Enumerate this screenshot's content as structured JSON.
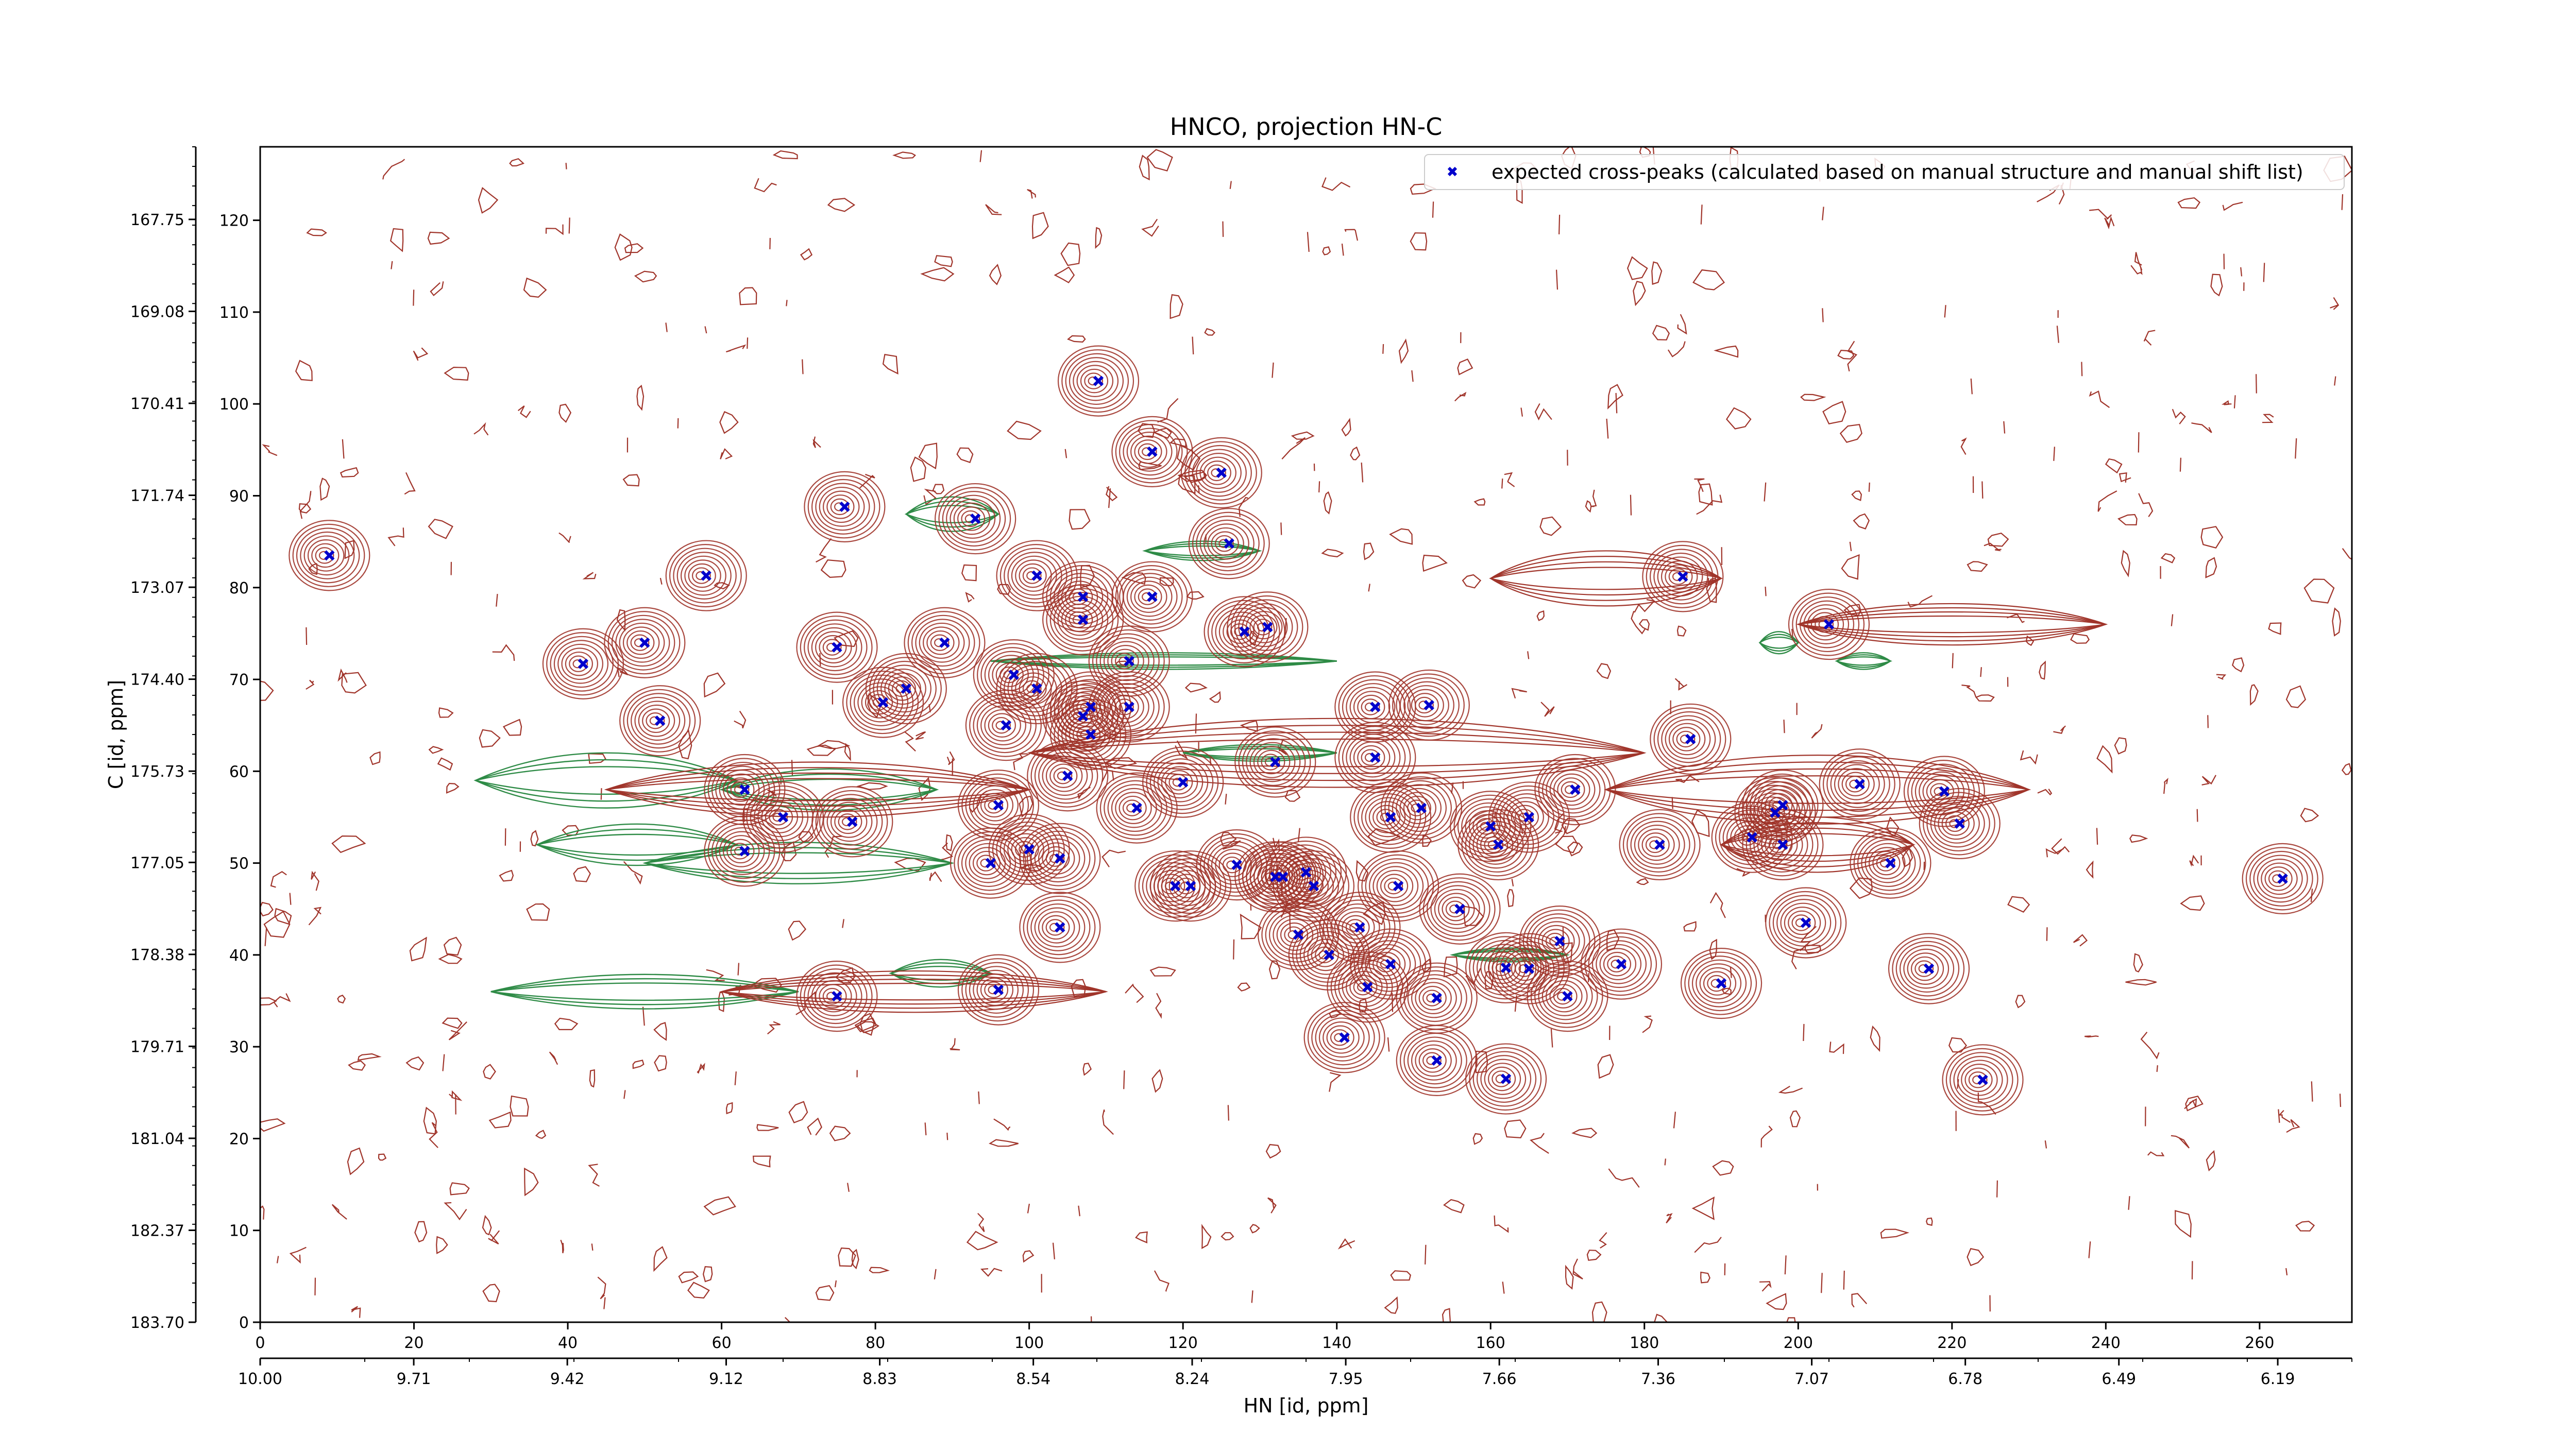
{
  "chart_data": {
    "type": "scatter",
    "title": "HNCO, projection HN-C",
    "xlabel": "HN [id, ppm]",
    "ylabel": "C [id, ppm]",
    "x_index": {
      "range": [
        0,
        272
      ],
      "ticks": [
        "0",
        "20",
        "40",
        "60",
        "80",
        "100",
        "120",
        "140",
        "160",
        "180",
        "200",
        "220",
        "240",
        "260"
      ]
    },
    "x_ppm": {
      "range": [
        10.0,
        6.05
      ],
      "ticks": [
        "10.00",
        "9.71",
        "9.42",
        "9.12",
        "8.83",
        "8.54",
        "8.24",
        "7.95",
        "7.66",
        "7.36",
        "7.07",
        "6.78",
        "6.49",
        "6.19"
      ]
    },
    "y_index": {
      "range": [
        0,
        128
      ],
      "ticks": [
        "0",
        "10",
        "20",
        "30",
        "40",
        "50",
        "60",
        "70",
        "80",
        "90",
        "100",
        "110",
        "120"
      ]
    },
    "y_ppm": {
      "range": [
        183.7,
        166.7
      ],
      "ticks": [
        "183.70",
        "182.37",
        "181.04",
        "179.71",
        "178.38",
        "177.05",
        "175.73",
        "174.40",
        "173.07",
        "171.74",
        "170.41",
        "169.08",
        "167.75"
      ]
    },
    "grid": false,
    "legend": {
      "placement": "top-right",
      "entries": [
        {
          "label": "expected cross-peaks (calculated based on manual structure and manual shift list)",
          "marker": "x",
          "color": "#0000cc"
        }
      ]
    },
    "colors": {
      "positive_contours": "#a0342a",
      "negative_contours": "#2e8b46",
      "peaks": "#0000cc"
    },
    "series": [
      {
        "kind": "peaks",
        "points": [
          [
            9,
            83.5
          ],
          [
            42,
            71.7
          ],
          [
            50,
            74
          ],
          [
            52,
            65.5
          ],
          [
            58,
            81.3
          ],
          [
            63,
            58
          ],
          [
            63,
            51.3
          ],
          [
            68,
            55
          ],
          [
            75,
            35.5
          ],
          [
            75,
            73.5
          ],
          [
            76,
            88.8
          ],
          [
            77,
            54.5
          ],
          [
            81,
            67.5
          ],
          [
            84,
            69
          ],
          [
            89,
            74
          ],
          [
            93,
            87.5
          ],
          [
            95,
            50
          ],
          [
            96,
            36.2
          ],
          [
            96,
            56.3
          ],
          [
            97,
            65
          ],
          [
            98,
            70.5
          ],
          [
            100,
            51.5
          ],
          [
            101,
            69
          ],
          [
            101,
            81.3
          ],
          [
            104,
            50.5
          ],
          [
            104,
            43
          ],
          [
            105,
            59.5
          ],
          [
            107,
            79
          ],
          [
            107,
            76.5
          ],
          [
            107,
            66
          ],
          [
            108,
            64
          ],
          [
            108,
            67
          ],
          [
            109,
            102.5
          ],
          [
            113,
            67
          ],
          [
            113,
            72
          ],
          [
            114,
            56
          ],
          [
            116,
            94.8
          ],
          [
            116,
            79
          ],
          [
            119,
            47.5
          ],
          [
            120,
            58.8
          ],
          [
            121,
            47.5
          ],
          [
            125,
            92.5
          ],
          [
            126,
            84.8
          ],
          [
            127,
            49.8
          ],
          [
            128,
            75.2
          ],
          [
            131,
            75.7
          ],
          [
            132,
            61
          ],
          [
            132,
            48.5
          ],
          [
            133,
            48.5
          ],
          [
            135,
            42.2
          ],
          [
            136,
            49
          ],
          [
            137,
            47.5
          ],
          [
            139,
            40
          ],
          [
            141,
            31
          ],
          [
            143,
            43
          ],
          [
            144,
            36.5
          ],
          [
            145,
            61.5
          ],
          [
            145,
            67
          ],
          [
            147,
            55
          ],
          [
            147,
            39
          ],
          [
            148,
            47.5
          ],
          [
            151,
            56
          ],
          [
            152,
            67.2
          ],
          [
            153,
            28.5
          ],
          [
            153,
            35.3
          ],
          [
            156,
            45
          ],
          [
            160,
            54
          ],
          [
            161,
            52
          ],
          [
            162,
            38.6
          ],
          [
            162,
            26.5
          ],
          [
            165,
            55
          ],
          [
            165,
            38.5
          ],
          [
            169,
            41.5
          ],
          [
            170,
            35.5
          ],
          [
            171,
            58
          ],
          [
            177,
            39
          ],
          [
            182,
            52
          ],
          [
            185,
            81.2
          ],
          [
            186,
            63.5
          ],
          [
            190,
            36.9
          ],
          [
            194,
            52.8
          ],
          [
            197,
            55.5
          ],
          [
            198,
            56.3
          ],
          [
            198,
            52
          ],
          [
            201,
            43.5
          ],
          [
            204,
            76
          ],
          [
            208,
            58.6
          ],
          [
            212,
            50
          ],
          [
            217,
            38.5
          ],
          [
            219,
            57.8
          ],
          [
            221,
            54.3
          ],
          [
            224,
            26.4
          ],
          [
            263,
            48.3
          ]
        ]
      }
    ]
  }
}
